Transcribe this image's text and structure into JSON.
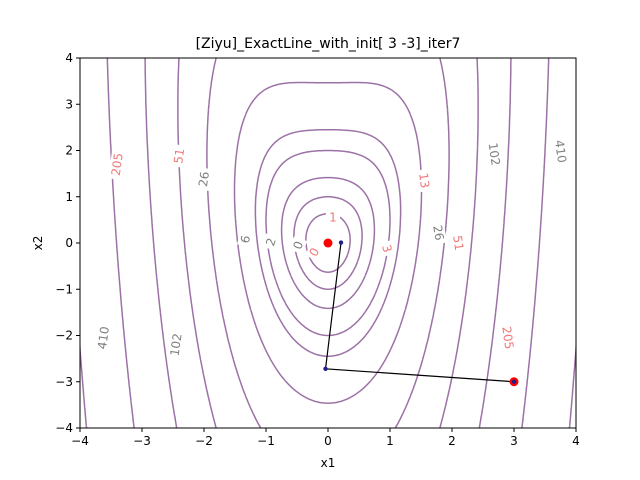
{
  "chart_data": {
    "type": "contour",
    "title": "[Ziyu]_ExactLine_with_init[ 3 -3]_iter7",
    "xlabel": "x1",
    "ylabel": "x2",
    "xlim": [
      -4,
      4
    ],
    "ylim": [
      -4,
      4
    ],
    "xticks": [
      "-4",
      "-3",
      "-2",
      "-1",
      "0",
      "1",
      "2",
      "3",
      "4"
    ],
    "yticks": [
      "-4",
      "-3",
      "-2",
      "-1",
      "0",
      "1",
      "2",
      "3",
      "4"
    ],
    "contour_color": "#9c71a5",
    "contour_levels": [
      0.2,
      0.5,
      1,
      2,
      3,
      6,
      13,
      26,
      51,
      102,
      205,
      410
    ],
    "contour_labels": [
      {
        "text": "1",
        "x": 0.08,
        "y": 0.55,
        "rot": 0,
        "color": "#f07878"
      },
      {
        "text": "0",
        "x": -0.22,
        "y": -0.2,
        "rot": -60,
        "color": "#f07878"
      },
      {
        "text": "0",
        "x": -0.48,
        "y": -0.05,
        "rot": -70,
        "color": "#808080"
      },
      {
        "text": "2",
        "x": -0.92,
        "y": 0.02,
        "rot": -72,
        "color": "#808080"
      },
      {
        "text": "6",
        "x": -1.33,
        "y": 0.08,
        "rot": -75,
        "color": "#808080"
      },
      {
        "text": "3",
        "x": 0.95,
        "y": -0.12,
        "rot": 75,
        "color": "#f07878"
      },
      {
        "text": "13",
        "x": 1.55,
        "y": 1.35,
        "rot": 82,
        "color": "#f07878"
      },
      {
        "text": "26",
        "x": -2.0,
        "y": 1.38,
        "rot": -82,
        "color": "#808080"
      },
      {
        "text": "26",
        "x": 1.78,
        "y": 0.22,
        "rot": 80,
        "color": "#808080"
      },
      {
        "text": "51",
        "x": -2.4,
        "y": 1.88,
        "rot": -82,
        "color": "#f07878"
      },
      {
        "text": "51",
        "x": 2.1,
        "y": 0.0,
        "rot": 82,
        "color": "#f07878"
      },
      {
        "text": "102",
        "x": -2.45,
        "y": -2.2,
        "rot": -82,
        "color": "#808080"
      },
      {
        "text": "102",
        "x": 2.68,
        "y": 1.92,
        "rot": 82,
        "color": "#808080"
      },
      {
        "text": "205",
        "x": -3.4,
        "y": 1.7,
        "rot": -82,
        "color": "#f07878"
      },
      {
        "text": "205",
        "x": 2.9,
        "y": -2.05,
        "rot": 82,
        "color": "#f07878"
      },
      {
        "text": "410",
        "x": -3.62,
        "y": -2.05,
        "rot": -82,
        "color": "#808080"
      },
      {
        "text": "410",
        "x": 3.75,
        "y": 1.98,
        "rot": 82,
        "color": "#808080"
      }
    ],
    "path": {
      "points": [
        [
          3,
          -3
        ],
        [
          -0.04,
          -2.72
        ],
        [
          0.21,
          0.01
        ]
      ],
      "line_color": "#000000",
      "point_color": "#1e1e8c"
    },
    "markers": [
      {
        "name": "start",
        "x": 3,
        "y": -3,
        "color": "#ff0000"
      },
      {
        "name": "minimum",
        "x": 0,
        "y": 0,
        "color": "#ff0000"
      }
    ]
  }
}
